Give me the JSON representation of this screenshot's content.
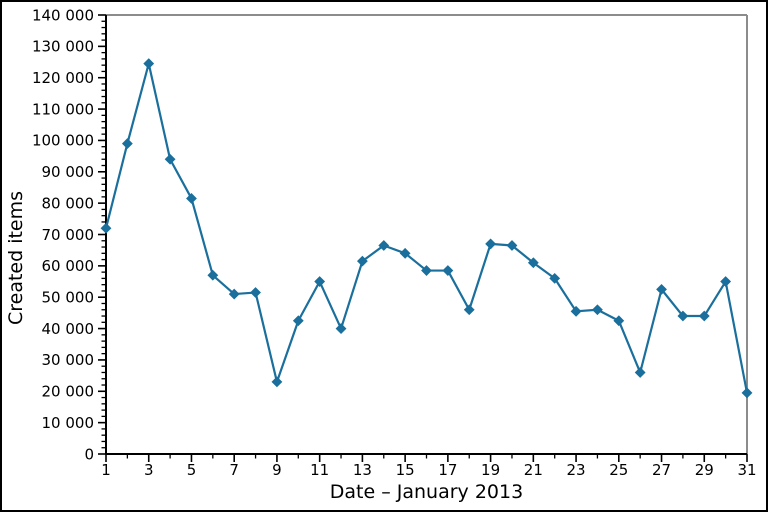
{
  "chart_data": {
    "type": "line",
    "title": "",
    "xlabel": "Date – January 2013",
    "ylabel": "Created items",
    "series_name": "Created items",
    "days": [
      1,
      2,
      3,
      4,
      5,
      6,
      7,
      8,
      9,
      10,
      11,
      12,
      13,
      14,
      15,
      16,
      17,
      18,
      19,
      20,
      21,
      22,
      23,
      24,
      25,
      26,
      27,
      28,
      29,
      30,
      31
    ],
    "values": [
      72000,
      99000,
      124500,
      94000,
      81500,
      57000,
      51000,
      51500,
      23000,
      42500,
      55000,
      40000,
      61500,
      66500,
      64000,
      58500,
      58500,
      46000,
      67000,
      66500,
      61000,
      56000,
      45500,
      46000,
      42500,
      26000,
      52500,
      44000,
      44000,
      55000,
      19500
    ],
    "xlim": [
      1,
      31
    ],
    "ylim": [
      0,
      140000
    ],
    "x_tick_values": [
      1,
      3,
      5,
      7,
      9,
      11,
      13,
      15,
      17,
      19,
      21,
      23,
      25,
      27,
      29,
      31
    ],
    "x_tick_labels": [
      "1",
      "3",
      "5",
      "7",
      "9",
      "11",
      "13",
      "15",
      "17",
      "19",
      "21",
      "23",
      "25",
      "27",
      "29",
      "31"
    ],
    "x_minor_tick_values": [
      2,
      4,
      6,
      8,
      10,
      12,
      14,
      16,
      18,
      20,
      22,
      24,
      26,
      28,
      30
    ],
    "y_tick_values": [
      0,
      10000,
      20000,
      30000,
      40000,
      50000,
      60000,
      70000,
      80000,
      90000,
      100000,
      110000,
      120000,
      130000,
      140000
    ],
    "y_tick_labels": [
      "0",
      "10 000",
      "20 000",
      "30 000",
      "40 000",
      "50 000",
      "60 000",
      "70 000",
      "80 000",
      "90 000",
      "100 000",
      "110 000",
      "120 000",
      "130 000",
      "140 000"
    ],
    "y_minor_step": 2000,
    "grid": false,
    "legend": "none",
    "marker": "diamond",
    "colors": {
      "line": "#1A6F9C",
      "frame": "#8C8C8C",
      "axis": "#000000",
      "text": "#000000",
      "background": "#FFFFFF",
      "border": "#000000"
    }
  }
}
